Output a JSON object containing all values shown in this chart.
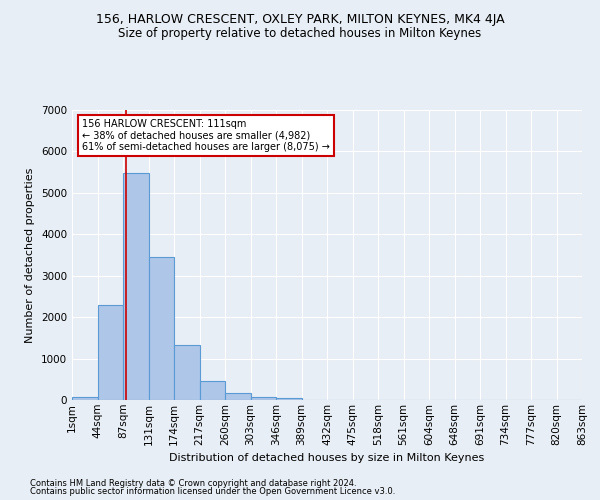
{
  "title": "156, HARLOW CRESCENT, OXLEY PARK, MILTON KEYNES, MK4 4JA",
  "subtitle": "Size of property relative to detached houses in Milton Keynes",
  "xlabel": "Distribution of detached houses by size in Milton Keynes",
  "ylabel": "Number of detached properties",
  "footer_line1": "Contains HM Land Registry data © Crown copyright and database right 2024.",
  "footer_line2": "Contains public sector information licensed under the Open Government Licence v3.0.",
  "bar_values": [
    75,
    2300,
    5480,
    3450,
    1320,
    470,
    160,
    80,
    50,
    0,
    0,
    0,
    0,
    0,
    0,
    0,
    0,
    0,
    0,
    0
  ],
  "bar_labels": [
    "1sqm",
    "44sqm",
    "87sqm",
    "131sqm",
    "174sqm",
    "217sqm",
    "260sqm",
    "303sqm",
    "346sqm",
    "389sqm",
    "432sqm",
    "475sqm",
    "518sqm",
    "561sqm",
    "604sqm",
    "648sqm",
    "691sqm",
    "734sqm",
    "777sqm",
    "820sqm",
    "863sqm"
  ],
  "bar_color": "#aec6e8",
  "bar_edge_color": "#5b9bd5",
  "red_line_x": 1.62,
  "annotation_text": "156 HARLOW CRESCENT: 111sqm\n← 38% of detached houses are smaller (4,982)\n61% of semi-detached houses are larger (8,075) →",
  "annotation_box_color": "#ffffff",
  "annotation_box_edge": "#cc0000",
  "vline_color": "#cc0000",
  "ylim": [
    0,
    7000
  ],
  "yticks": [
    0,
    1000,
    2000,
    3000,
    4000,
    5000,
    6000,
    7000
  ],
  "bg_color": "#e8eef5",
  "grid_color": "#ffffff",
  "title_fontsize": 9,
  "subtitle_fontsize": 8.5,
  "axis_fontsize": 8,
  "tick_fontsize": 7.5,
  "footer_fontsize": 6
}
